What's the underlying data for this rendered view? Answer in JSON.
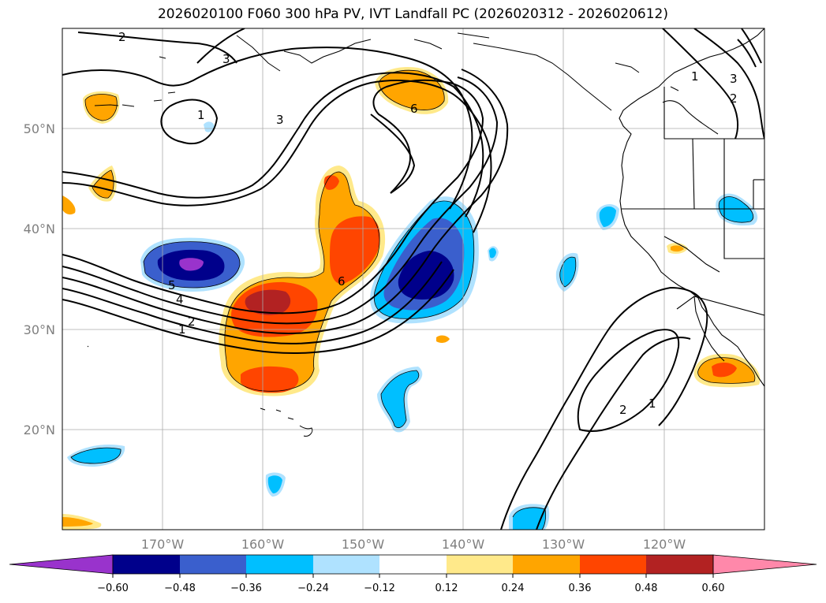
{
  "title": "2026020100 F060 300 hPa PV, IVT Landfall PC (2026020312 - 2026020612)",
  "lat_labels": [
    "50°N",
    "40°N",
    "30°N",
    "20°N"
  ],
  "lon_labels": [
    "170°W",
    "160°W",
    "150°W",
    "140°W",
    "130°W",
    "120°W"
  ],
  "contour_labels": [
    "2",
    "3",
    "1",
    "3",
    "6",
    "5",
    "4",
    "2",
    "1",
    "6",
    "1",
    "3",
    "2",
    "2",
    "1"
  ],
  "colorbar": {
    "ticks": [
      "−0.60",
      "−0.48",
      "−0.36",
      "−0.24",
      "−0.12",
      "0.12",
      "0.24",
      "0.36",
      "0.48",
      "0.60"
    ],
    "colors": [
      "#9933cc",
      "#00008b",
      "#3a5fcd",
      "#00bfff",
      "#afe2ff",
      "#ffffff",
      "#ffe98a",
      "#ffa500",
      "#ff4500",
      "#b22222",
      "#ff88aa"
    ]
  }
}
